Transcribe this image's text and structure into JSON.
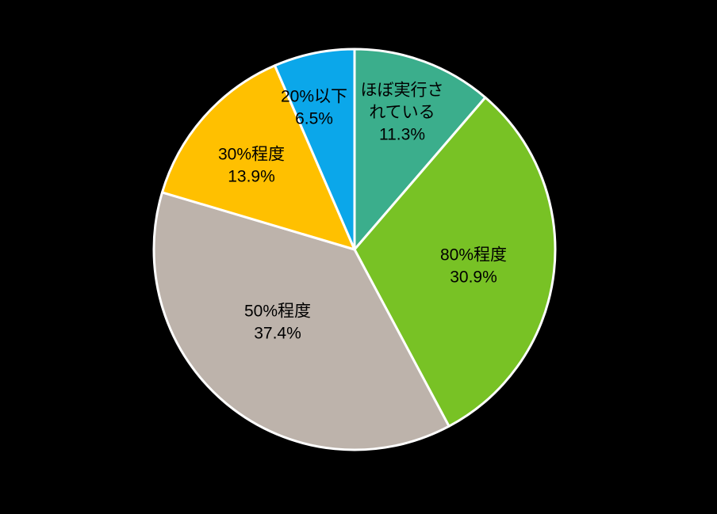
{
  "chart_data": {
    "type": "pie",
    "title": "",
    "background_color": "#000000",
    "slice_border_color": "#FFFFFF",
    "label_text_color": "#000000",
    "start_angle_deg": 0,
    "direction": "clockwise",
    "legend": "none (labels inside slices)",
    "categories": [
      "ほぼ実行されている",
      "80%程度",
      "50%程度",
      "30%程度",
      "20%以下"
    ],
    "values": [
      11.3,
      30.9,
      37.4,
      13.9,
      6.5
    ],
    "slices": [
      {
        "label": "ほぼ実行されている",
        "value": 11.3,
        "percent_text": "11.3%",
        "color": "#3BAE8C",
        "lines": [
          "ほぼ実行さ",
          "れている",
          "11.3%"
        ]
      },
      {
        "label": "80%程度",
        "value": 30.9,
        "percent_text": "30.9%",
        "color": "#78C225",
        "lines": [
          "80%程度",
          "30.9%"
        ]
      },
      {
        "label": "50%程度",
        "value": 37.4,
        "percent_text": "37.4%",
        "color": "#BDB3AB",
        "lines": [
          "50%程度",
          "37.4%"
        ]
      },
      {
        "label": "30%程度",
        "value": 13.9,
        "percent_text": "13.9%",
        "color": "#FFC000",
        "lines": [
          "30%程度",
          "13.9%"
        ]
      },
      {
        "label": "20%以下",
        "value": 6.5,
        "percent_text": "6.5%",
        "color": "#0BA7EA",
        "lines": [
          "20%以下",
          "6.5%"
        ]
      }
    ]
  }
}
